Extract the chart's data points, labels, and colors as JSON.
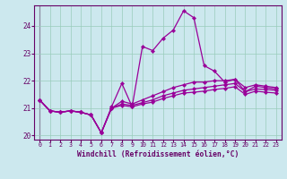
{
  "xlabel": "Windchill (Refroidissement éolien,°C)",
  "bg_color": "#cce8ee",
  "line_color": "#990099",
  "grid_color": "#99ccbb",
  "axis_color": "#660066",
  "xlim": [
    -0.5,
    23.5
  ],
  "ylim": [
    19.85,
    24.75
  ],
  "xticks": [
    0,
    1,
    2,
    3,
    4,
    5,
    6,
    7,
    8,
    9,
    10,
    11,
    12,
    13,
    14,
    15,
    16,
    17,
    18,
    19,
    20,
    21,
    22,
    23
  ],
  "yticks": [
    20,
    21,
    22,
    23,
    24
  ],
  "series": [
    [
      21.3,
      20.9,
      20.85,
      20.9,
      20.85,
      20.75,
      20.1,
      21.05,
      21.9,
      21.05,
      23.25,
      23.1,
      23.55,
      23.85,
      24.55,
      24.3,
      22.55,
      22.35,
      21.95,
      22.05,
      21.6,
      21.8,
      21.75,
      21.7
    ],
    [
      21.3,
      20.9,
      20.85,
      20.9,
      20.85,
      20.75,
      20.1,
      21.0,
      21.25,
      21.15,
      21.3,
      21.45,
      21.6,
      21.75,
      21.85,
      21.95,
      21.95,
      22.0,
      22.0,
      22.05,
      21.75,
      21.85,
      21.8,
      21.75
    ],
    [
      21.3,
      20.9,
      20.85,
      20.9,
      20.85,
      20.75,
      20.1,
      21.0,
      21.15,
      21.1,
      21.2,
      21.3,
      21.45,
      21.55,
      21.65,
      21.7,
      21.75,
      21.8,
      21.85,
      21.9,
      21.6,
      21.7,
      21.68,
      21.65
    ],
    [
      21.3,
      20.9,
      20.85,
      20.9,
      20.85,
      20.75,
      20.1,
      21.0,
      21.1,
      21.05,
      21.15,
      21.22,
      21.35,
      21.45,
      21.55,
      21.58,
      21.62,
      21.68,
      21.72,
      21.78,
      21.5,
      21.62,
      21.58,
      21.55
    ]
  ]
}
